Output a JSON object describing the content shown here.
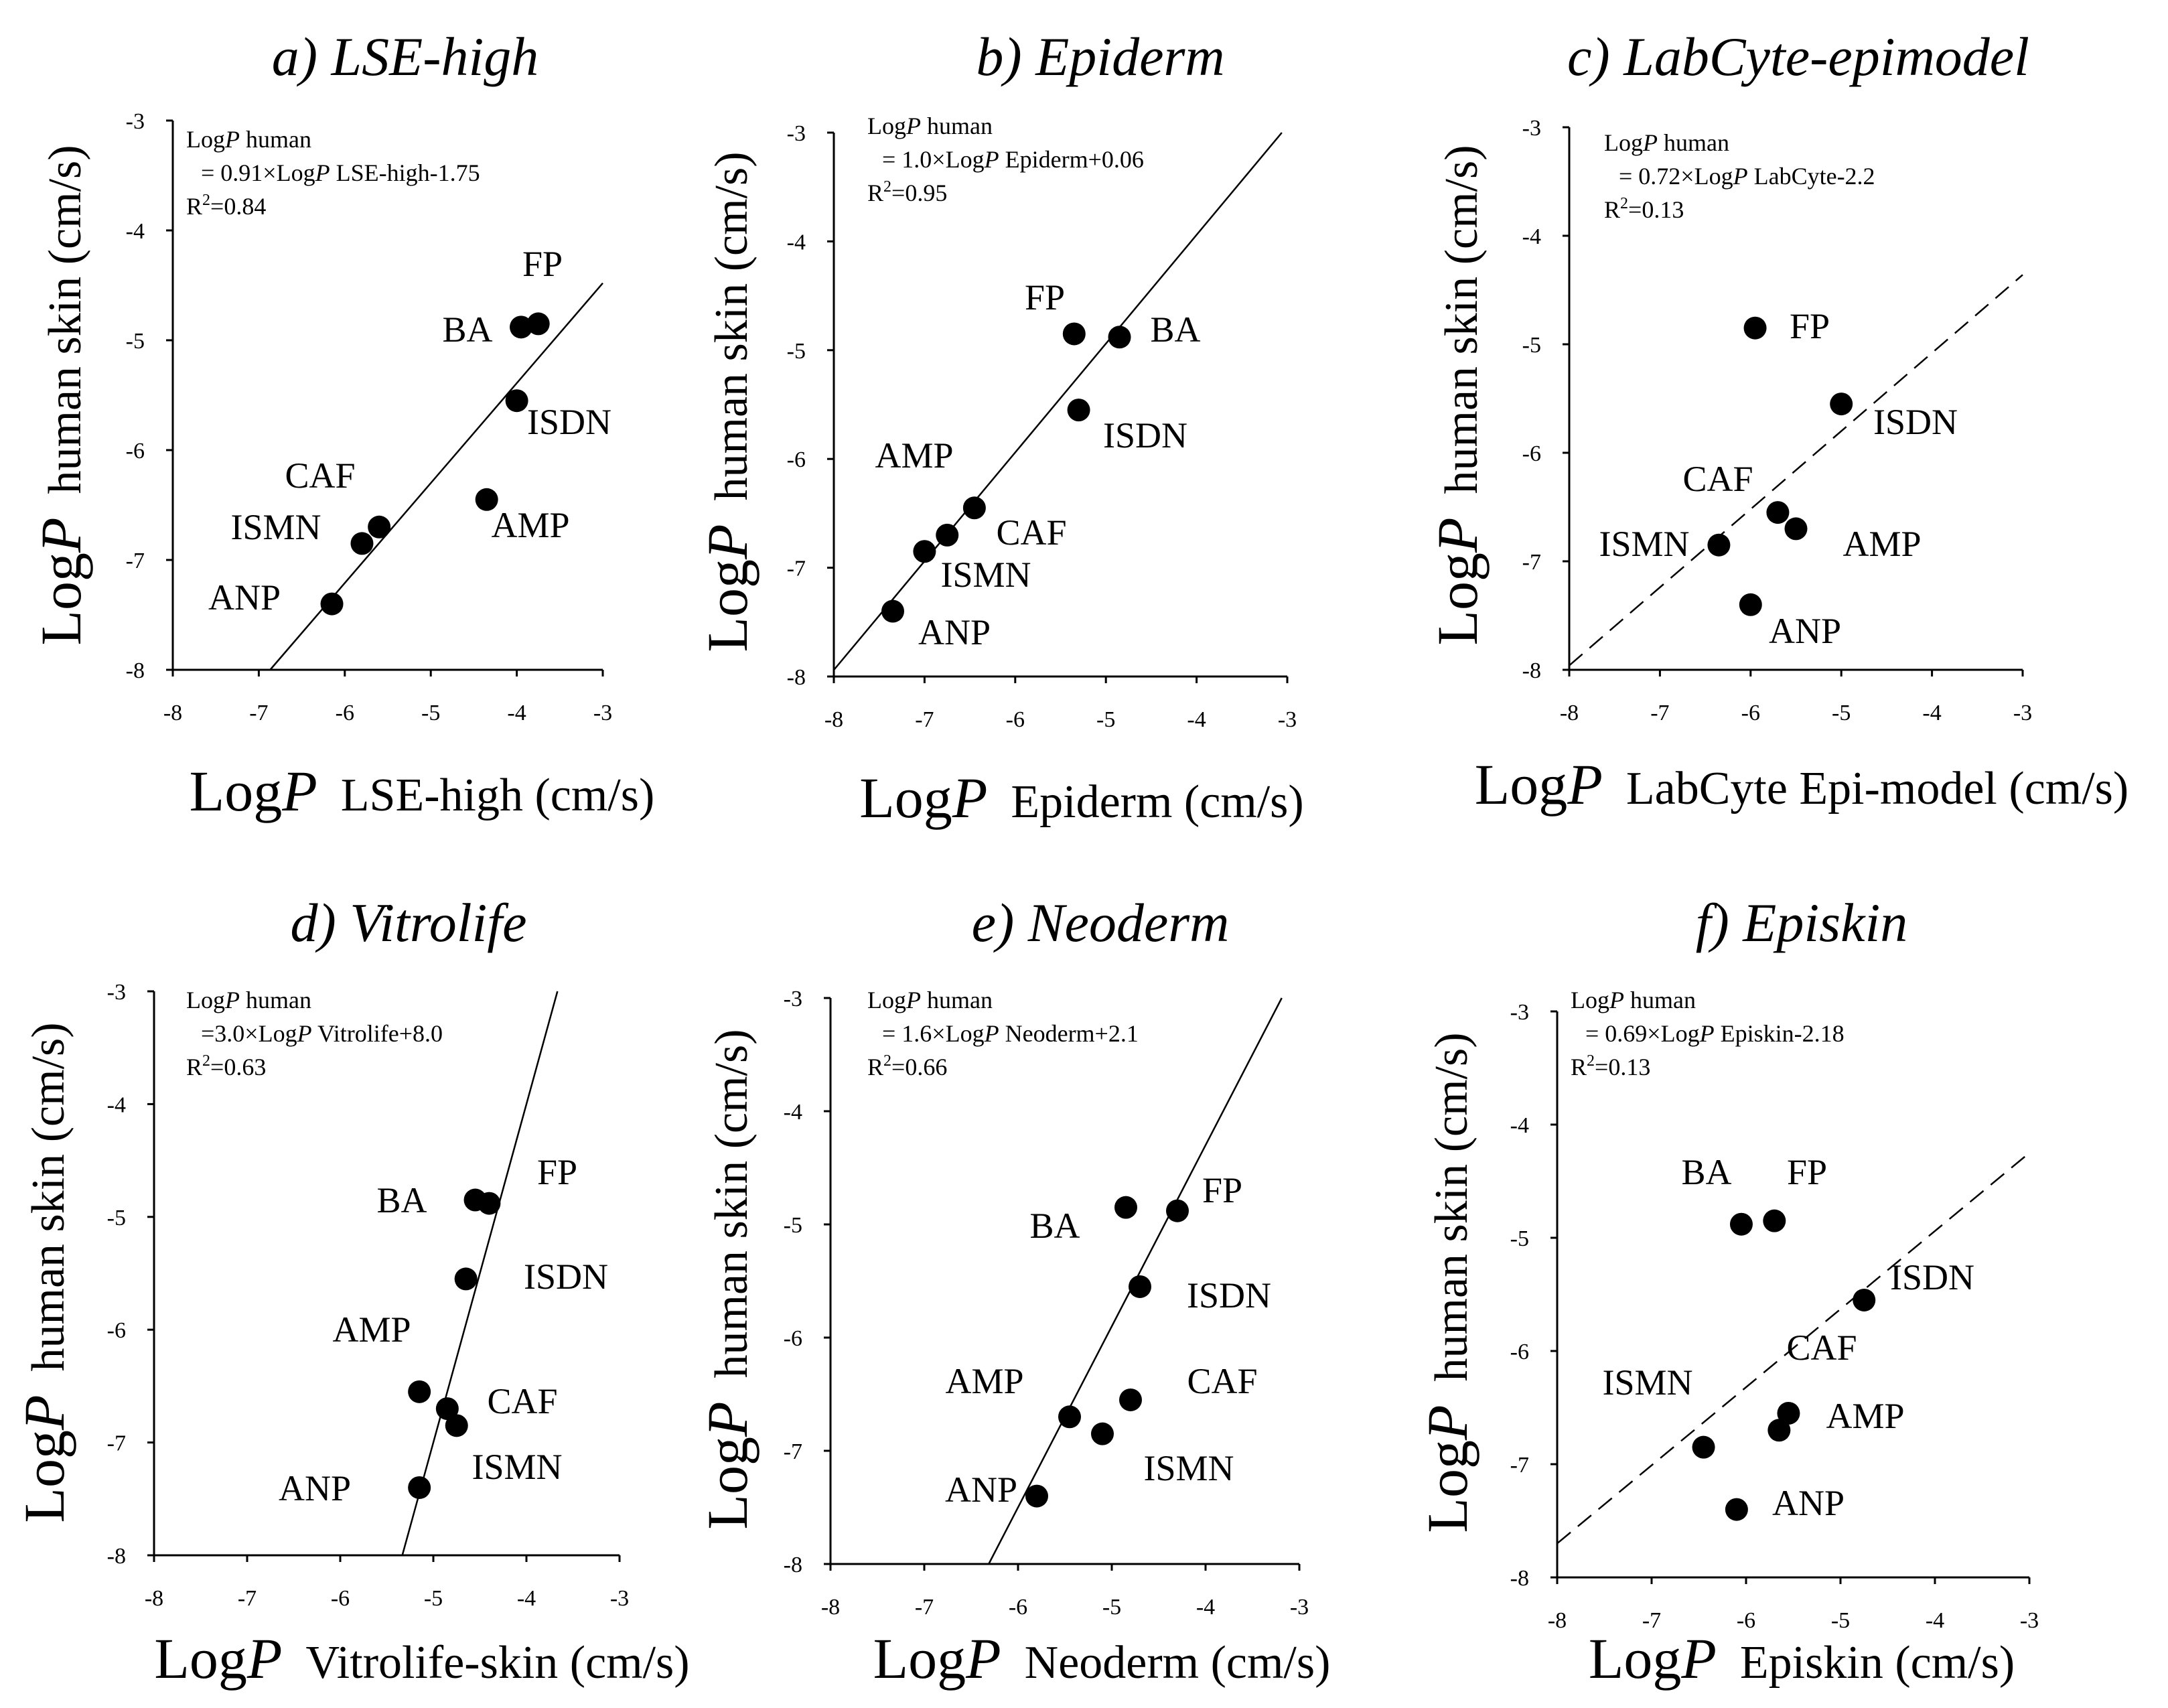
{
  "chart_data": [
    {
      "type": "scatter",
      "title": "a) LSE-high",
      "xlabel": {
        "prefix": "Log",
        "italic": "P",
        "suffix": "LSE-high (cm/s)"
      },
      "ylabel": {
        "prefix": "Log",
        "italic": "P",
        "suffix": "human skin (cm/s)"
      },
      "xlim": [
        -8,
        -3
      ],
      "ylim": [
        -8,
        -3
      ],
      "xticks": [
        "-8",
        "-7",
        "-6",
        "-5",
        "-4",
        "-3"
      ],
      "yticks": [
        "-8",
        "-7",
        "-6",
        "-5",
        "-4",
        "-3"
      ],
      "equation": {
        "line1_prefix": "Log",
        "line1_italic": "P",
        "line1_suffix": " human",
        "line2_prefix": "= 0.91×Log",
        "line2_italic": "P",
        "line2_suffix": " LSE-high-1.75",
        "r2_label": "R",
        "r2_sup": "2",
        "r2_value": "=0.84"
      },
      "fit": {
        "slope": 0.91,
        "intercept": -1.75,
        "style": "solid"
      },
      "points": [
        {
          "name": "FP",
          "x": -3.75,
          "y": -4.85
        },
        {
          "name": "BA",
          "x": -3.95,
          "y": -4.88
        },
        {
          "name": "ISDN",
          "x": -4.0,
          "y": -5.55
        },
        {
          "name": "AMP",
          "x": -4.35,
          "y": -6.45
        },
        {
          "name": "CAF",
          "x": -5.6,
          "y": -6.7
        },
        {
          "name": "ISMN",
          "x": -5.8,
          "y": -6.85
        },
        {
          "name": "ANP",
          "x": -6.15,
          "y": -7.4
        }
      ]
    },
    {
      "type": "scatter",
      "title": "b) Epiderm",
      "xlabel": {
        "prefix": "Log",
        "italic": "P",
        "suffix": "Epiderm (cm/s)"
      },
      "ylabel": {
        "prefix": "Log",
        "italic": "P",
        "suffix": "human skin (cm/s)"
      },
      "xlim": [
        -8,
        -3
      ],
      "ylim": [
        -8,
        -3
      ],
      "xticks": [
        "-8",
        "-7",
        "-6",
        "-5",
        "-4",
        "-3"
      ],
      "yticks": [
        "-8",
        "-7",
        "-6",
        "-5",
        "-4",
        "-3"
      ],
      "equation": {
        "line1_prefix": "Log",
        "line1_italic": "P",
        "line1_suffix": " human",
        "line2_prefix": "= 1.0×Log",
        "line2_italic": "P",
        "line2_suffix": " Epiderm+0.06",
        "r2_label": "R",
        "r2_sup": "2",
        "r2_value": "=0.95"
      },
      "fit": {
        "slope": 1.0,
        "intercept": 0.06,
        "style": "solid"
      },
      "points": [
        {
          "name": "FP",
          "x": -5.35,
          "y": -4.85
        },
        {
          "name": "BA",
          "x": -4.85,
          "y": -4.88
        },
        {
          "name": "ISDN",
          "x": -5.3,
          "y": -5.55
        },
        {
          "name": "AMP",
          "x": -6.45,
          "y": -6.45
        },
        {
          "name": "CAF",
          "x": -6.75,
          "y": -6.7
        },
        {
          "name": "ISMN",
          "x": -7.0,
          "y": -6.85
        },
        {
          "name": "ANP",
          "x": -7.35,
          "y": -7.4
        }
      ]
    },
    {
      "type": "scatter",
      "title": "c) LabCyte-epimodel",
      "xlabel": {
        "prefix": "Log",
        "italic": "P",
        "suffix": "LabCyte Epi-model (cm/s)"
      },
      "ylabel": {
        "prefix": "Log",
        "italic": "P",
        "suffix": "human skin (cm/s)"
      },
      "xlim": [
        -8,
        -3
      ],
      "ylim": [
        -8,
        -3
      ],
      "xticks": [
        "-8",
        "-7",
        "-6",
        "-5",
        "-4",
        "-3"
      ],
      "yticks": [
        "-8",
        "-7",
        "-6",
        "-5",
        "-4",
        "-3"
      ],
      "equation": {
        "line1_prefix": "Log",
        "line1_italic": "P",
        "line1_suffix": " human",
        "line2_prefix": "= 0.72×Log",
        "line2_italic": "P",
        "line2_suffix": " LabCyte-2.2",
        "r2_label": "R",
        "r2_sup": "2",
        "r2_value": "=0.13"
      },
      "fit": {
        "slope": 0.72,
        "intercept": -2.2,
        "style": "dashed"
      },
      "points": [
        {
          "name": "FP",
          "x": -5.95,
          "y": -4.85
        },
        {
          "name": "ISDN",
          "x": -5.0,
          "y": -5.55
        },
        {
          "name": "CAF",
          "x": -5.7,
          "y": -6.55
        },
        {
          "name": "AMP",
          "x": -5.5,
          "y": -6.7
        },
        {
          "name": "ISMN",
          "x": -6.35,
          "y": -6.85
        },
        {
          "name": "ANP",
          "x": -6.0,
          "y": -7.4
        }
      ]
    },
    {
      "type": "scatter",
      "title": "d) Vitrolife",
      "xlabel": {
        "prefix": "Log",
        "italic": "P",
        "suffix": "Vitrolife-skin  (cm/s)"
      },
      "ylabel": {
        "prefix": "Log",
        "italic": "P",
        "suffix": "human skin (cm/s)"
      },
      "xlim": [
        -8,
        -3
      ],
      "ylim": [
        -8,
        -3
      ],
      "xticks": [
        "-8",
        "-7",
        "-6",
        "-5",
        "-4",
        "-3"
      ],
      "yticks": [
        "-8",
        "-7",
        "-6",
        "-5",
        "-4",
        "-3"
      ],
      "equation": {
        "line1_prefix": "Log",
        "line1_italic": "P",
        "line1_suffix": " human",
        "line2_prefix": "=3.0×Log",
        "line2_italic": "P",
        "line2_suffix": " Vitrolife+8.0",
        "r2_label": "R",
        "r2_sup": "2",
        "r2_value": "=0.63"
      },
      "fit": {
        "slope": 3.0,
        "intercept": 8.0,
        "style": "solid"
      },
      "points": [
        {
          "name": "BA",
          "x": -4.55,
          "y": -4.85
        },
        {
          "name": "FP",
          "x": -4.4,
          "y": -4.88
        },
        {
          "name": "ISDN",
          "x": -4.65,
          "y": -5.55
        },
        {
          "name": "AMP",
          "x": -5.15,
          "y": -6.55
        },
        {
          "name": "CAF",
          "x": -4.85,
          "y": -6.7
        },
        {
          "name": "ISMN",
          "x": -4.75,
          "y": -6.85
        },
        {
          "name": "ANP",
          "x": -5.15,
          "y": -7.4
        }
      ]
    },
    {
      "type": "scatter",
      "title": "e) Neoderm",
      "xlabel": {
        "prefix": "Log",
        "italic": "P",
        "suffix": "Neoderm (cm/s)"
      },
      "ylabel": {
        "prefix": "Log",
        "italic": "P",
        "suffix": "human skin (cm/s)"
      },
      "xlim": [
        -8,
        -3
      ],
      "ylim": [
        -8,
        -3
      ],
      "xticks": [
        "-8",
        "-7",
        "-6",
        "-5",
        "-4",
        "-3"
      ],
      "yticks": [
        "-8",
        "-7",
        "-6",
        "-5",
        "-4",
        "-3"
      ],
      "equation": {
        "line1_prefix": "Log",
        "line1_italic": "P",
        "line1_suffix": " human",
        "line2_prefix": "= 1.6×Log",
        "line2_italic": "P",
        "line2_suffix": " Neoderm+2.1",
        "r2_label": "R",
        "r2_sup": "2",
        "r2_value": "=0.66"
      },
      "fit": {
        "slope": 1.6,
        "intercept": 2.1,
        "style": "solid"
      },
      "points": [
        {
          "name": "BA",
          "x": -4.85,
          "y": -4.85
        },
        {
          "name": "FP",
          "x": -4.3,
          "y": -4.88
        },
        {
          "name": "ISDN",
          "x": -4.7,
          "y": -5.55
        },
        {
          "name": "CAF",
          "x": -4.8,
          "y": -6.55
        },
        {
          "name": "AMP",
          "x": -5.45,
          "y": -6.7
        },
        {
          "name": "ISMN",
          "x": -5.1,
          "y": -6.85
        },
        {
          "name": "ANP",
          "x": -5.8,
          "y": -7.4
        }
      ]
    },
    {
      "type": "scatter",
      "title": "f) Episkin",
      "xlabel": {
        "prefix": "Log",
        "italic": "P",
        "suffix": "Episkin (cm/s)"
      },
      "ylabel": {
        "prefix": "Log",
        "italic": "P",
        "suffix": "human skin (cm/s)"
      },
      "xlim": [
        -8,
        -3
      ],
      "ylim": [
        -8,
        -3
      ],
      "xticks": [
        "-8",
        "-7",
        "-6",
        "-5",
        "-4",
        "-3"
      ],
      "yticks": [
        "-8",
        "-7",
        "-6",
        "-5",
        "-4",
        "-3"
      ],
      "equation": {
        "line1_prefix": "Log",
        "line1_italic": "P",
        "line1_suffix": " human",
        "line2_prefix": "= 0.69×Log",
        "line2_italic": "P",
        "line2_suffix": " Episkin-2.18",
        "r2_label": "R",
        "r2_sup": "2",
        "r2_value": "=0.13"
      },
      "fit": {
        "slope": 0.69,
        "intercept": -2.18,
        "style": "dashed"
      },
      "points": [
        {
          "name": "BA",
          "x": -6.05,
          "y": -4.88
        },
        {
          "name": "FP",
          "x": -5.7,
          "y": -4.85
        },
        {
          "name": "ISDN",
          "x": -4.75,
          "y": -5.55
        },
        {
          "name": "CAF",
          "x": -5.55,
          "y": -6.55
        },
        {
          "name": "AMP",
          "x": -5.65,
          "y": -6.7
        },
        {
          "name": "ISMN",
          "x": -6.45,
          "y": -6.85
        },
        {
          "name": "ANP",
          "x": -6.1,
          "y": -7.4
        }
      ]
    }
  ]
}
